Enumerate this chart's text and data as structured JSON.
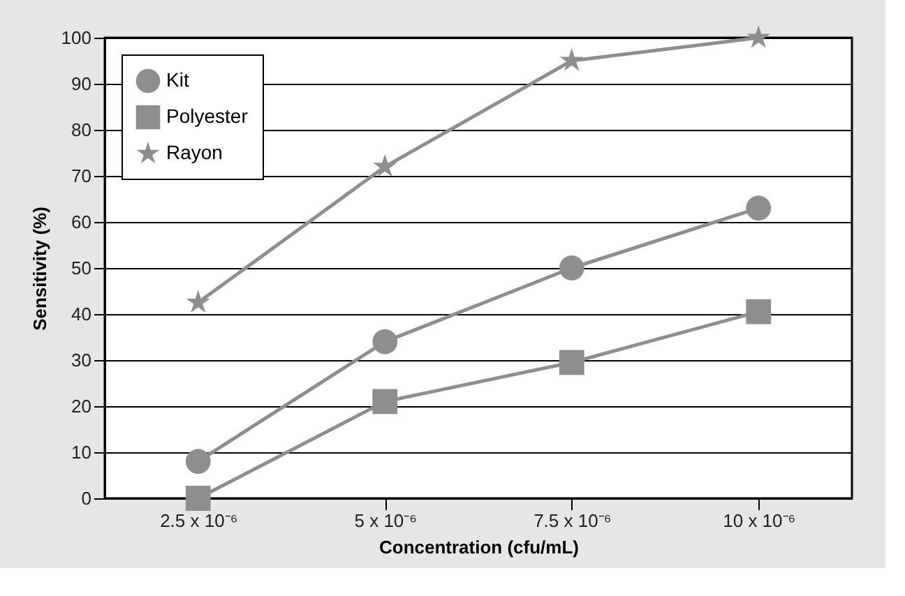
{
  "chart_data": {
    "type": "line",
    "xlabel": "Concentration (cfu/mL)",
    "ylabel": "Sensitivity (%)",
    "categories": [
      "2.5 x 10⁻⁶",
      "5 x 10⁻⁶",
      "7.5 x 10⁻⁶",
      "10 x 10⁻⁶"
    ],
    "series": [
      {
        "name": "Kit",
        "color": "#8e8e90",
        "marker": "circle",
        "values": [
          8,
          34,
          50,
          63
        ]
      },
      {
        "name": "Polyester",
        "color": "#8e8e90",
        "marker": "square",
        "values": [
          0,
          21,
          29.5,
          40.5
        ]
      },
      {
        "name": "Rayon",
        "color": "#8e8e90",
        "marker": "star",
        "values": [
          42.5,
          72,
          95,
          100
        ]
      }
    ],
    "ylim": [
      0,
      100
    ],
    "yticks": [
      0,
      10,
      20,
      30,
      40,
      50,
      60,
      70,
      80,
      90,
      100
    ],
    "grid": "y",
    "legend": "top left",
    "line_style": "solid"
  }
}
